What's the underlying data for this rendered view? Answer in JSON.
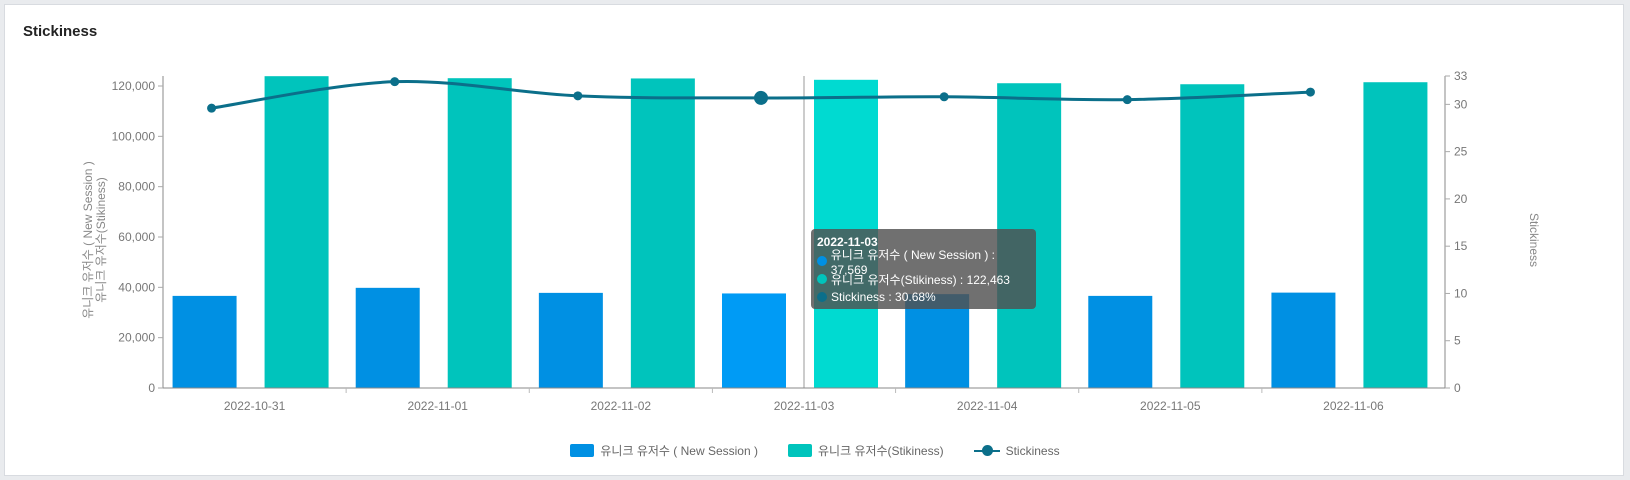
{
  "card": {
    "title": "Stickiness"
  },
  "chart_data": {
    "type": "bar+line",
    "title": "Stickiness",
    "categories": [
      "2022-10-31",
      "2022-11-01",
      "2022-11-02",
      "2022-11-03",
      "2022-11-04",
      "2022-11-05",
      "2022-11-06"
    ],
    "series": [
      {
        "name": "유니크 유저수 ( New Session )",
        "type": "bar",
        "axis": "left",
        "color": "#0090e3",
        "highlight_color": "#009bf5",
        "values": [
          36600,
          39800,
          37800,
          37569,
          37300,
          36600,
          37900
        ]
      },
      {
        "name": "유니크 유저수(Stikiness)",
        "type": "bar",
        "axis": "left",
        "color": "#00c4bc",
        "highlight_color": "#00dad1",
        "values": [
          123900,
          123100,
          123000,
          122463,
          121100,
          120700,
          121500
        ]
      },
      {
        "name": "Stickiness",
        "type": "line",
        "axis": "right",
        "color": "#0b6f8a",
        "values": [
          29.6,
          32.4,
          30.9,
          30.68,
          30.8,
          30.5,
          31.3
        ]
      }
    ],
    "left_axis": {
      "label_line1": "유니크 유저수 ( New Session )",
      "label_line2": "유니크 유저수(Stikiness)",
      "ticks": [
        "0",
        "20,000",
        "40,000",
        "60,000",
        "80,000",
        "100,000",
        "120,000"
      ],
      "tick_values": [
        0,
        20000,
        40000,
        60000,
        80000,
        100000,
        120000
      ],
      "range": [
        0,
        124000
      ]
    },
    "right_axis": {
      "label": "Stickiness",
      "ticks": [
        "0",
        "5",
        "10",
        "15",
        "20",
        "25",
        "30",
        "33"
      ],
      "tick_values": [
        0,
        5,
        10,
        15,
        20,
        25,
        30,
        33
      ],
      "range": [
        0,
        33
      ]
    },
    "grid": false,
    "legend_position": "bottom-center",
    "highlighted_category_index": 3,
    "tooltip": {
      "title": "2022-11-03",
      "rows": [
        {
          "label": "유니크 유저수 ( New Session ) : 37,569",
          "color": "#0090e3"
        },
        {
          "label": "유니크 유저수(Stikiness) : 122,463",
          "color": "#00c4bc"
        },
        {
          "label": "Stickiness : 30.68%",
          "color": "#0b6f8a"
        }
      ]
    }
  }
}
